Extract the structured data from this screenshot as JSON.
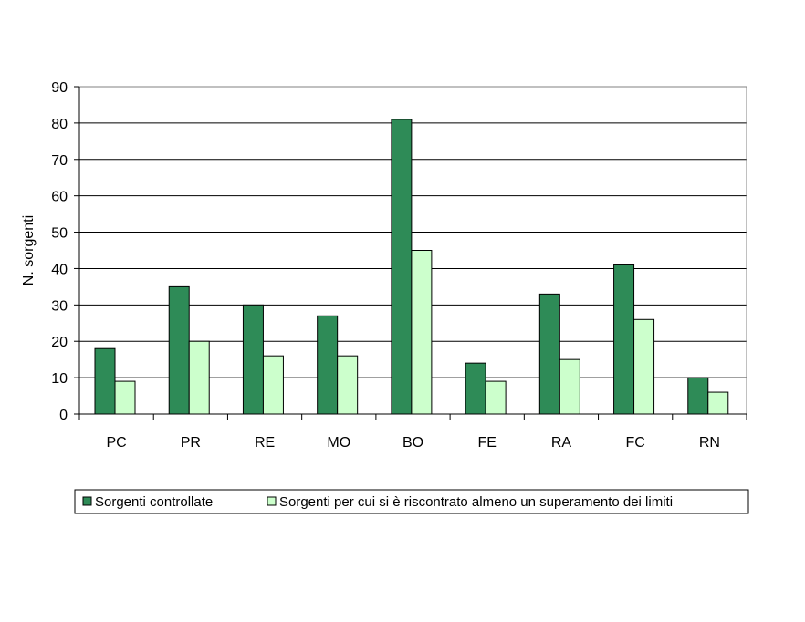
{
  "colors": {
    "series_1": "#2E8B57",
    "series_2": "#CCFFCC",
    "border": "#000000",
    "gridline": "#000000"
  },
  "chart_data": {
    "type": "bar",
    "categories": [
      "PC",
      "PR",
      "RE",
      "MO",
      "BO",
      "FE",
      "RA",
      "FC",
      "RN"
    ],
    "series": [
      {
        "name": "Sorgenti controllate",
        "values": [
          18,
          35,
          30,
          27,
          81,
          14,
          33,
          41,
          10
        ]
      },
      {
        "name": "Sorgenti per cui si è riscontrato almeno un superamento dei limiti",
        "values": [
          9,
          20,
          16,
          16,
          45,
          9,
          15,
          26,
          6
        ]
      }
    ],
    "title": "",
    "xlabel": "",
    "ylabel": "N. sorgenti",
    "ylim": [
      0,
      90
    ],
    "yticks": [
      0,
      10,
      20,
      30,
      40,
      50,
      60,
      70,
      80,
      90
    ],
    "grid": true,
    "legend_position": "bottom"
  }
}
